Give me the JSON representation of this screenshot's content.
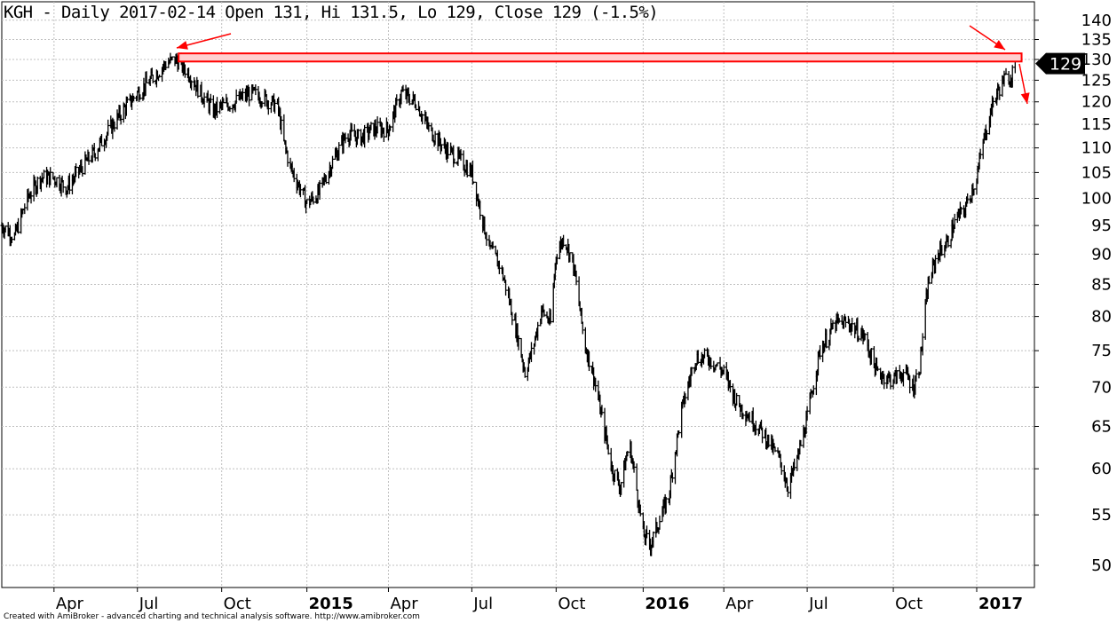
{
  "header": {
    "title": "KGH - Daily 2017-02-14 Open 131, Hi 131.5, Lo 129, Close 129 (-1.5%)"
  },
  "footer": {
    "credit": "Created with AmiBroker - advanced charting and technical analysis software. http://www.amibroker.com"
  },
  "chart_data": {
    "type": "line",
    "style": "bar (OHLC) price chart",
    "symbol": "KGH",
    "periodicity": "Daily",
    "last_bar": {
      "date": "2017-02-14",
      "open": 131,
      "high": 131.5,
      "low": 129,
      "close": 129,
      "change_pct": -1.5
    },
    "last_price_label": "129",
    "y_scale": "log",
    "ylim": [
      47,
      145
    ],
    "y_ticks": [
      50,
      55,
      60,
      65,
      70,
      75,
      80,
      85,
      90,
      95,
      100,
      105,
      110,
      115,
      120,
      125,
      130,
      135,
      140
    ],
    "x_ticks": [
      {
        "label": "Apr",
        "date": "2014-04-01",
        "bold": false
      },
      {
        "label": "Jul",
        "date": "2014-07-01",
        "bold": false
      },
      {
        "label": "Oct",
        "date": "2014-10-01",
        "bold": false
      },
      {
        "label": "2015",
        "date": "2015-01-02",
        "bold": true
      },
      {
        "label": "Apr",
        "date": "2015-04-01",
        "bold": false
      },
      {
        "label": "Jul",
        "date": "2015-07-01",
        "bold": false
      },
      {
        "label": "Oct",
        "date": "2015-10-01",
        "bold": false
      },
      {
        "label": "2016",
        "date": "2016-01-04",
        "bold": true
      },
      {
        "label": "Apr",
        "date": "2016-04-01",
        "bold": false
      },
      {
        "label": "Jul",
        "date": "2016-07-01",
        "bold": false
      },
      {
        "label": "Oct",
        "date": "2016-10-03",
        "bold": false
      },
      {
        "label": "2017",
        "date": "2017-01-02",
        "bold": true
      }
    ],
    "x_range": [
      "2014-02-03",
      "2017-03-06"
    ],
    "grid": true,
    "series": [
      {
        "x": [
          "2014-02-03",
          "2014-02-17",
          "2014-03-03",
          "2014-03-17",
          "2014-04-01",
          "2014-04-15",
          "2014-05-01",
          "2014-05-15",
          "2014-06-01",
          "2014-06-15",
          "2014-07-01",
          "2014-07-15",
          "2014-08-01",
          "2014-08-12",
          "2014-08-25",
          "2014-09-08",
          "2014-09-22",
          "2014-10-01",
          "2014-10-15",
          "2014-11-01",
          "2014-11-15",
          "2014-12-01",
          "2014-12-08",
          "2014-12-15",
          "2015-01-02",
          "2015-01-15",
          "2015-02-01",
          "2015-02-15",
          "2015-03-01",
          "2015-03-15",
          "2015-04-01",
          "2015-04-15",
          "2015-05-01",
          "2015-05-15",
          "2015-06-01",
          "2015-06-15",
          "2015-07-01",
          "2015-07-10",
          "2015-07-20",
          "2015-08-01",
          "2015-08-10",
          "2015-08-20",
          "2015-08-28",
          "2015-09-05",
          "2015-09-15",
          "2015-09-25",
          "2015-10-01",
          "2015-10-10",
          "2015-10-20",
          "2015-11-01",
          "2015-11-10",
          "2015-11-20",
          "2015-12-01",
          "2015-12-10",
          "2015-12-20",
          "2016-01-04",
          "2016-01-12",
          "2016-01-20",
          "2016-02-01",
          "2016-02-15",
          "2016-03-01",
          "2016-03-15",
          "2016-04-01",
          "2016-04-15",
          "2016-05-01",
          "2016-05-15",
          "2016-06-01",
          "2016-06-10",
          "2016-06-20",
          "2016-07-01",
          "2016-07-15",
          "2016-08-01",
          "2016-08-15",
          "2016-09-01",
          "2016-09-15",
          "2016-10-01",
          "2016-10-15",
          "2016-10-25",
          "2016-11-01",
          "2016-11-10",
          "2016-11-20",
          "2016-12-01",
          "2016-12-10",
          "2016-12-20",
          "2017-01-02",
          "2017-01-10",
          "2017-01-20",
          "2017-01-31",
          "2017-02-08",
          "2017-02-14"
        ],
        "values": [
          95,
          93,
          100,
          104,
          104,
          102,
          106,
          109,
          114,
          118,
          122,
          125,
          129,
          130,
          127,
          122,
          118,
          119,
          120,
          122,
          121,
          119,
          111,
          106,
          99,
          101,
          108,
          113,
          112,
          114,
          114,
          122,
          120,
          114,
          110,
          108,
          105,
          98,
          91,
          88,
          83,
          77,
          72,
          75,
          81,
          79,
          90,
          93,
          88,
          76,
          72,
          66,
          60,
          58,
          63,
          53,
          52,
          54,
          57,
          67,
          74,
          74,
          72,
          68,
          66,
          64,
          61,
          58,
          61,
          66,
          75,
          79,
          79,
          77,
          72,
          71,
          72,
          70,
          73,
          85,
          90,
          92,
          96,
          98,
          104,
          112,
          120,
          125,
          126,
          129
        ]
      }
    ],
    "annotations": [
      {
        "type": "horizontal band",
        "color": "#ff0000",
        "y_low": 129.5,
        "y_high": 131.5
      },
      {
        "type": "arrow",
        "color": "#ff0000",
        "points_to": "August 2014 high near the band"
      },
      {
        "type": "arrow",
        "color": "#ff0000",
        "points_to": "February 2017 price touching the band"
      },
      {
        "type": "arrow",
        "color": "#ff0000",
        "direction": "down",
        "from": "last bar"
      }
    ],
    "colors": {
      "bars": "#000000",
      "grid": "#c0c0c0",
      "annotation": "#ff0000",
      "price_label_bg": "#000000",
      "price_label_text": "#ffffff"
    }
  }
}
